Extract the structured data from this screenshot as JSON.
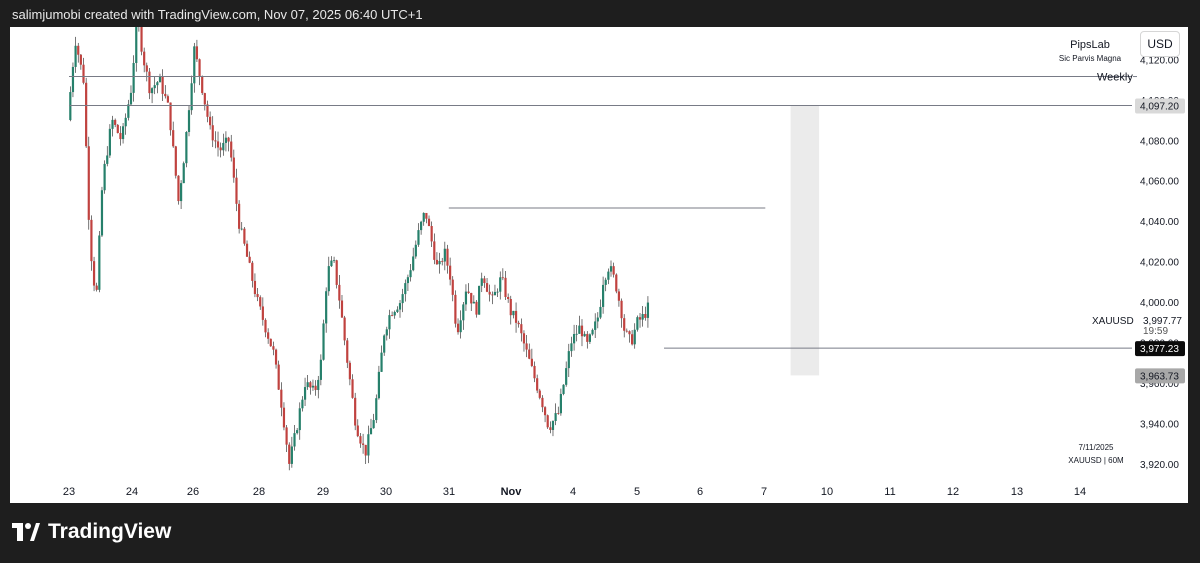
{
  "header": {
    "text": "salimjumobi created with TradingView.com, Nov 07, 2025 06:40 UTC+1"
  },
  "brand": {
    "name": "TradingView",
    "icon": "tradingview-logo-icon"
  },
  "currency_button": "USD",
  "watermark_top": {
    "line1": "PipsLab",
    "line2": "Sic Parvis Magna"
  },
  "watermark_bottom": {
    "date": "7/11/2025",
    "symbol_tf": "XAUUSD | 60M"
  },
  "symbol": {
    "name": "XAUUSD",
    "price": "3,997.77",
    "countdown": "19:59"
  },
  "price_labels": [
    {
      "text": "4,097.20",
      "value": 4097.2,
      "style": "light"
    },
    {
      "text": "3,977.23",
      "value": 3977.23,
      "style": "dark"
    },
    {
      "text": "3,963.73",
      "value": 3963.73,
      "style": "medium"
    }
  ],
  "colors": {
    "up": "#26806b",
    "down": "#c0423f",
    "line": "#787b86",
    "background": "#ffffff",
    "zone": "#ebebeb"
  },
  "chart_data": {
    "type": "candlestick",
    "symbol": "XAUUSD",
    "timeframe": "60M",
    "y_ticks": [
      {
        "text": "4,120.00",
        "value": 4120
      },
      {
        "text": "4,100.00",
        "value": 4100
      },
      {
        "text": "4,080.00",
        "value": 4080
      },
      {
        "text": "4,060.00",
        "value": 4060
      },
      {
        "text": "4,040.00",
        "value": 4040
      },
      {
        "text": "4,020.00",
        "value": 4020
      },
      {
        "text": "4,000.00",
        "value": 4000
      },
      {
        "text": "3,980.00",
        "value": 3980
      },
      {
        "text": "3,960.00",
        "value": 3960
      },
      {
        "text": "3,940.00",
        "value": 3940
      },
      {
        "text": "3,920.00",
        "value": 3920
      }
    ],
    "x_ticks": [
      {
        "label": "23",
        "bold": false
      },
      {
        "label": "24",
        "bold": false
      },
      {
        "label": "26",
        "bold": false
      },
      {
        "label": "28",
        "bold": false
      },
      {
        "label": "29",
        "bold": false
      },
      {
        "label": "30",
        "bold": false
      },
      {
        "label": "31",
        "bold": false
      },
      {
        "label": "Nov",
        "bold": true
      },
      {
        "label": "4",
        "bold": false
      },
      {
        "label": "5",
        "bold": false
      },
      {
        "label": "6",
        "bold": false
      },
      {
        "label": "7",
        "bold": false
      },
      {
        "label": "10",
        "bold": false
      },
      {
        "label": "11",
        "bold": false
      },
      {
        "label": "12",
        "bold": false
      },
      {
        "label": "13",
        "bold": false
      },
      {
        "label": "14",
        "bold": false
      }
    ],
    "path_days": [
      [
        0.0,
        4090
      ],
      [
        0.12,
        4130
      ],
      [
        0.25,
        4110
      ],
      [
        0.35,
        4030
      ],
      [
        0.45,
        4000
      ],
      [
        0.55,
        4060
      ],
      [
        0.7,
        4090
      ],
      [
        0.85,
        4080
      ],
      [
        1.0,
        4105
      ],
      [
        1.1,
        4140
      ],
      [
        1.2,
        4120
      ],
      [
        1.3,
        4105
      ],
      [
        1.45,
        4110
      ],
      [
        1.6,
        4095
      ],
      [
        1.75,
        4050
      ],
      [
        1.85,
        4075
      ],
      [
        2.0,
        4125
      ],
      [
        2.1,
        4110
      ],
      [
        2.25,
        4085
      ],
      [
        2.4,
        4075
      ],
      [
        2.55,
        4080
      ],
      [
        2.7,
        4040
      ],
      [
        2.85,
        4020
      ],
      [
        3.0,
        4000
      ],
      [
        3.1,
        3990
      ],
      [
        3.25,
        3975
      ],
      [
        3.4,
        3945
      ],
      [
        3.5,
        3920
      ],
      [
        3.6,
        3935
      ],
      [
        3.75,
        3960
      ],
      [
        3.9,
        3955
      ],
      [
        4.0,
        3970
      ],
      [
        4.1,
        4015
      ],
      [
        4.2,
        4020
      ],
      [
        4.3,
        4000
      ],
      [
        4.4,
        3975
      ],
      [
        4.55,
        3940
      ],
      [
        4.7,
        3925
      ],
      [
        4.85,
        3945
      ],
      [
        5.0,
        3985
      ],
      [
        5.1,
        3995
      ],
      [
        5.25,
        4000
      ],
      [
        5.4,
        4015
      ],
      [
        5.55,
        4035
      ],
      [
        5.65,
        4045
      ],
      [
        5.75,
        4030
      ],
      [
        5.85,
        4015
      ],
      [
        5.95,
        4025
      ],
      [
        6.05,
        4012
      ],
      [
        6.15,
        3985
      ],
      [
        6.3,
        4008
      ],
      [
        6.45,
        3995
      ],
      [
        6.55,
        4015
      ],
      [
        6.7,
        4000
      ],
      [
        6.85,
        4012
      ],
      [
        7.0,
        3995
      ],
      [
        7.1,
        3990
      ],
      [
        7.25,
        3975
      ],
      [
        7.4,
        3960
      ],
      [
        7.5,
        3950
      ],
      [
        7.6,
        3938
      ],
      [
        7.75,
        3945
      ],
      [
        7.85,
        3962
      ],
      [
        7.95,
        3980
      ],
      [
        8.1,
        3988
      ],
      [
        8.2,
        3978
      ],
      [
        8.3,
        3985
      ],
      [
        8.4,
        3995
      ],
      [
        8.45,
        4010
      ],
      [
        8.55,
        4018
      ],
      [
        8.65,
        4010
      ],
      [
        8.75,
        3995
      ],
      [
        8.8,
        3985
      ],
      [
        8.9,
        3980
      ],
      [
        9.0,
        3990
      ],
      [
        9.1,
        3993
      ],
      [
        9.18,
        3998
      ]
    ],
    "days_plotted": 9.18,
    "candles_per_day": 24,
    "horizontal_lines": [
      {
        "label": "Weekly",
        "value": 4111.5,
        "from_day": 0,
        "to_day": 17.3
      },
      {
        "label": "",
        "value": 4097.2,
        "from_day": 0,
        "to_day": 17.3
      },
      {
        "label": "",
        "value": 4046.5,
        "from_day": 6.0,
        "to_day": 11.0
      },
      {
        "label": "",
        "value": 3977.23,
        "from_day": 9.4,
        "to_day": 17.3
      }
    ],
    "zone": {
      "from_day": 11.4,
      "to_day": 11.85,
      "y_top": 4097.2,
      "y_bottom": 3963.73
    },
    "ylim": [
      3912,
      4136
    ],
    "grid": false
  }
}
